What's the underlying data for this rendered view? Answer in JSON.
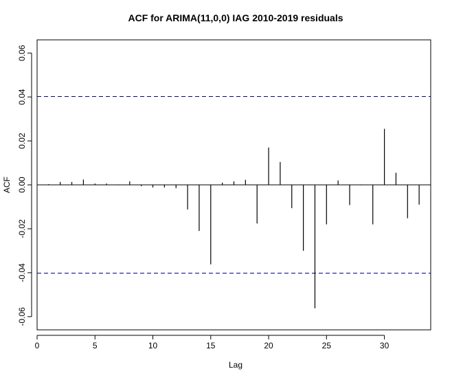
{
  "chart_data": {
    "type": "bar",
    "title": "ACF for ARIMA(11,0,0) IAG 2010-2019 residuals",
    "xlabel": "Lag",
    "ylabel": "ACF",
    "xlim": [
      0,
      34
    ],
    "ylim": [
      -0.066,
      0.066
    ],
    "x_ticks": [
      0,
      5,
      10,
      15,
      20,
      25,
      30
    ],
    "y_ticks": [
      -0.06,
      -0.04,
      -0.02,
      0.0,
      0.02,
      0.04,
      0.06
    ],
    "x_tick_labels": [
      "0",
      "5",
      "10",
      "15",
      "20",
      "25",
      "30"
    ],
    "y_tick_labels": [
      "-0.06",
      "-0.04",
      "-0.02",
      "0.00",
      "0.02",
      "0.04",
      "0.06"
    ],
    "confidence_bound": 0.0402,
    "lags": [
      1,
      2,
      3,
      4,
      5,
      6,
      7,
      8,
      9,
      10,
      11,
      12,
      13,
      14,
      15,
      16,
      17,
      18,
      19,
      20,
      21,
      22,
      23,
      24,
      25,
      26,
      27,
      28,
      29,
      30,
      31,
      32,
      33
    ],
    "values": [
      0.0003,
      0.0013,
      0.0013,
      0.0024,
      0.0006,
      0.0006,
      -0.0002,
      0.0016,
      -0.0006,
      -0.0012,
      -0.0012,
      -0.0015,
      -0.0112,
      -0.021,
      -0.0362,
      0.001,
      0.0016,
      0.0023,
      -0.0176,
      0.017,
      0.0104,
      -0.0106,
      -0.03,
      -0.0562,
      -0.018,
      0.002,
      -0.0092,
      -0.0002,
      -0.018,
      0.0255,
      0.0055,
      -0.0152,
      -0.009
    ],
    "colors": {
      "bars": "#000000",
      "bounds": "#00008b",
      "axis": "#000000"
    }
  }
}
